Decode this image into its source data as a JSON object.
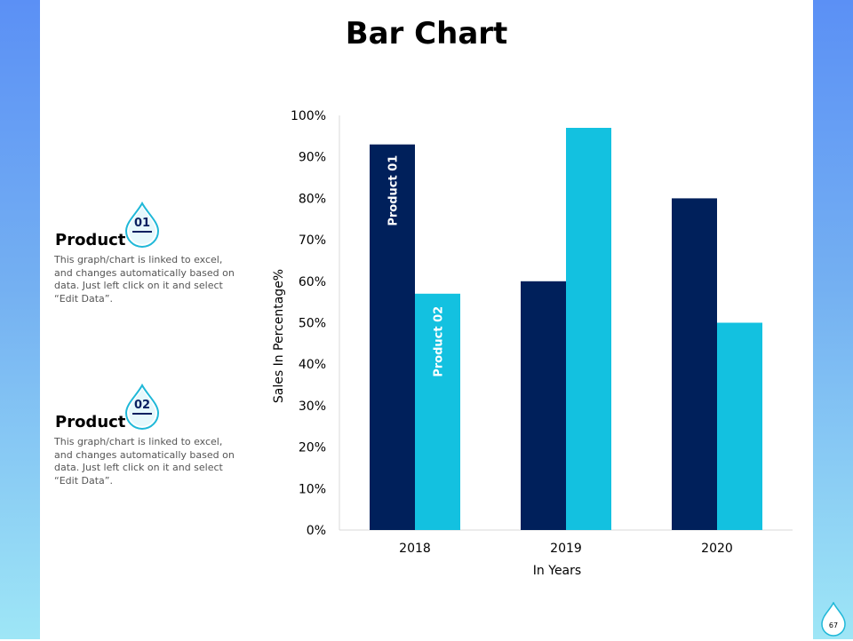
{
  "slide": {
    "title": "Bar Chart",
    "page_number": "67"
  },
  "products": [
    {
      "title": "Product",
      "number": "01",
      "description": "This graph/chart is linked to excel, and changes automatically based on data. Just left click on it and select “Edit Data”."
    },
    {
      "title": "Product",
      "number": "02",
      "description": "This graph/chart is linked to excel, and changes automatically based on data. Just left click on it and select “Edit Data”."
    }
  ],
  "colors": {
    "product_01": "#00205b",
    "product_02": "#13c1e0",
    "side_top": "#5b90f5",
    "side_bottom": "#9ee6f6",
    "drop_outline": "#1fb8d8"
  },
  "chart_data": {
    "type": "bar",
    "categories": [
      "2018",
      "2019",
      "2020"
    ],
    "series": [
      {
        "name": "Product 01",
        "values": [
          93,
          60,
          80
        ]
      },
      {
        "name": "Product 02",
        "values": [
          57,
          97,
          50
        ]
      }
    ],
    "xlabel": "In Years",
    "ylabel": "Sales In Percentage%",
    "ylim": [
      0,
      100
    ],
    "yticks": [
      "0%",
      "10%",
      "20%",
      "30%",
      "40%",
      "50%",
      "60%",
      "70%",
      "80%",
      "90%",
      "100%"
    ],
    "grid": false,
    "legend": "none"
  }
}
